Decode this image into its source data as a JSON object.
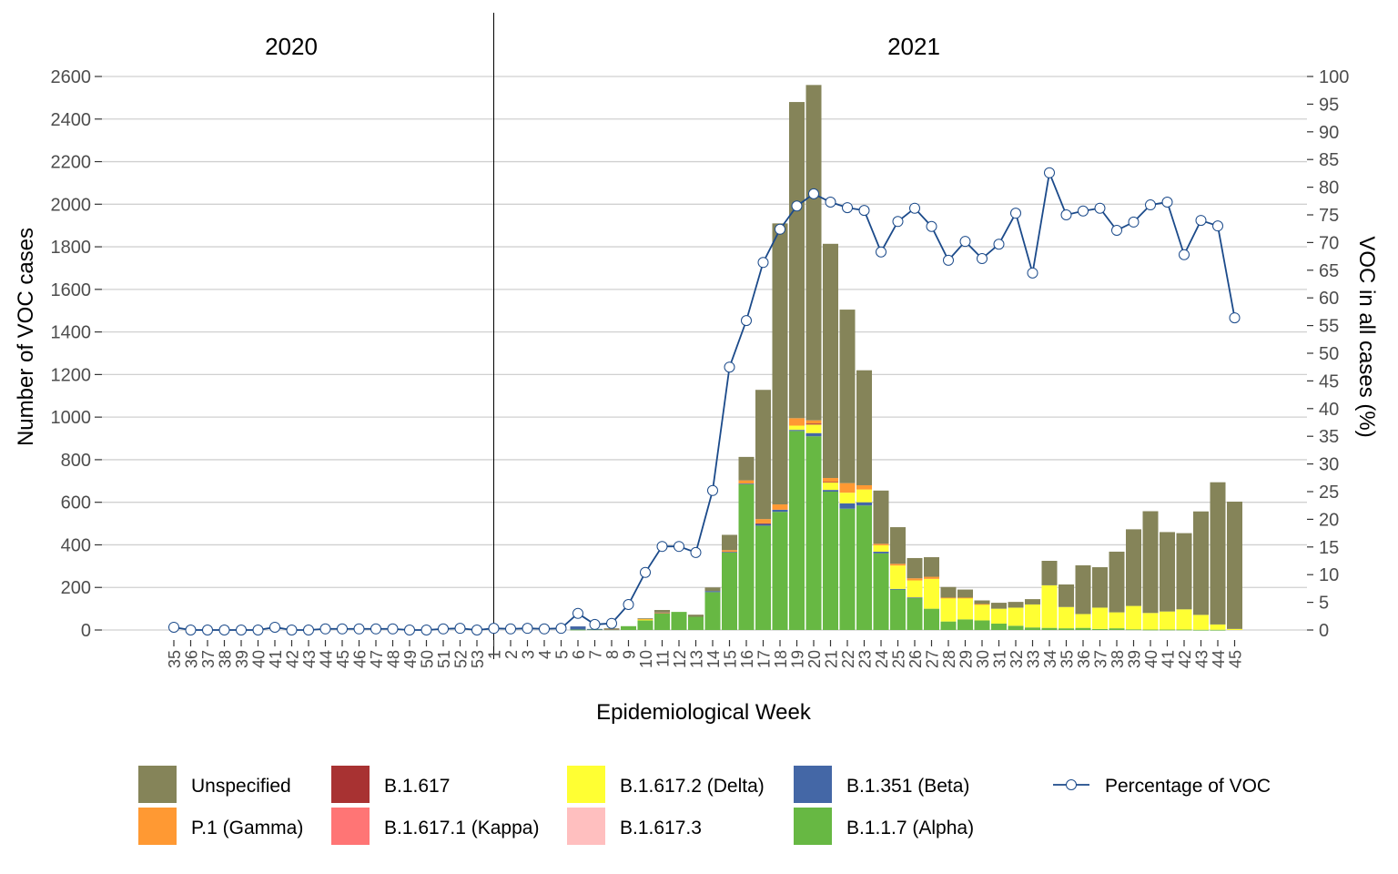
{
  "chart_data": {
    "type": "bar",
    "stacked": true,
    "facets": [
      "2020",
      "2021"
    ],
    "xlabel": "Epidemiological Week",
    "ylabel": "Number of VOC cases",
    "y2label": "VOC in all cases (%)",
    "ylim": [
      0,
      2600
    ],
    "yticks": [
      0,
      200,
      400,
      600,
      800,
      1000,
      1200,
      1400,
      1600,
      1800,
      2000,
      2200,
      2400,
      2600
    ],
    "y2lim": [
      0,
      100
    ],
    "y2ticks": [
      0,
      5,
      10,
      15,
      20,
      25,
      30,
      35,
      40,
      45,
      50,
      55,
      60,
      65,
      70,
      75,
      80,
      85,
      90,
      95,
      100
    ],
    "grid": true,
    "legend_position": "bottom",
    "weeks": [
      {
        "year": "2020",
        "week": "35"
      },
      {
        "year": "2020",
        "week": "36"
      },
      {
        "year": "2020",
        "week": "37"
      },
      {
        "year": "2020",
        "week": "38"
      },
      {
        "year": "2020",
        "week": "39"
      },
      {
        "year": "2020",
        "week": "40"
      },
      {
        "year": "2020",
        "week": "41"
      },
      {
        "year": "2020",
        "week": "42"
      },
      {
        "year": "2020",
        "week": "43"
      },
      {
        "year": "2020",
        "week": "44"
      },
      {
        "year": "2020",
        "week": "45"
      },
      {
        "year": "2020",
        "week": "46"
      },
      {
        "year": "2020",
        "week": "47"
      },
      {
        "year": "2020",
        "week": "48"
      },
      {
        "year": "2020",
        "week": "49"
      },
      {
        "year": "2020",
        "week": "50"
      },
      {
        "year": "2020",
        "week": "51"
      },
      {
        "year": "2020",
        "week": "52"
      },
      {
        "year": "2020",
        "week": "53"
      },
      {
        "year": "2021",
        "week": "1"
      },
      {
        "year": "2021",
        "week": "2"
      },
      {
        "year": "2021",
        "week": "3"
      },
      {
        "year": "2021",
        "week": "4"
      },
      {
        "year": "2021",
        "week": "5"
      },
      {
        "year": "2021",
        "week": "6"
      },
      {
        "year": "2021",
        "week": "7"
      },
      {
        "year": "2021",
        "week": "8"
      },
      {
        "year": "2021",
        "week": "9"
      },
      {
        "year": "2021",
        "week": "10"
      },
      {
        "year": "2021",
        "week": "11"
      },
      {
        "year": "2021",
        "week": "12"
      },
      {
        "year": "2021",
        "week": "13"
      },
      {
        "year": "2021",
        "week": "14"
      },
      {
        "year": "2021",
        "week": "15"
      },
      {
        "year": "2021",
        "week": "16"
      },
      {
        "year": "2021",
        "week": "17"
      },
      {
        "year": "2021",
        "week": "18"
      },
      {
        "year": "2021",
        "week": "19"
      },
      {
        "year": "2021",
        "week": "20"
      },
      {
        "year": "2021",
        "week": "21"
      },
      {
        "year": "2021",
        "week": "22"
      },
      {
        "year": "2021",
        "week": "23"
      },
      {
        "year": "2021",
        "week": "24"
      },
      {
        "year": "2021",
        "week": "25"
      },
      {
        "year": "2021",
        "week": "26"
      },
      {
        "year": "2021",
        "week": "27"
      },
      {
        "year": "2021",
        "week": "28"
      },
      {
        "year": "2021",
        "week": "29"
      },
      {
        "year": "2021",
        "week": "30"
      },
      {
        "year": "2021",
        "week": "31"
      },
      {
        "year": "2021",
        "week": "32"
      },
      {
        "year": "2021",
        "week": "33"
      },
      {
        "year": "2021",
        "week": "34"
      },
      {
        "year": "2021",
        "week": "35"
      },
      {
        "year": "2021",
        "week": "36"
      },
      {
        "year": "2021",
        "week": "37"
      },
      {
        "year": "2021",
        "week": "38"
      },
      {
        "year": "2021",
        "week": "39"
      },
      {
        "year": "2021",
        "week": "40"
      },
      {
        "year": "2021",
        "week": "41"
      },
      {
        "year": "2021",
        "week": "42"
      },
      {
        "year": "2021",
        "week": "43"
      },
      {
        "year": "2021",
        "week": "44"
      },
      {
        "year": "2021",
        "week": "45"
      }
    ],
    "series": [
      {
        "name": "B.1.1.7 (Alpha)",
        "color": "#67b843",
        "values": [
          0,
          0,
          0,
          0,
          0,
          0,
          0,
          0,
          0,
          0,
          0,
          0,
          0,
          0,
          0,
          0,
          0,
          0,
          0,
          0,
          0,
          0,
          0,
          0,
          2,
          3,
          3,
          18,
          45,
          80,
          85,
          62,
          178,
          365,
          685,
          490,
          555,
          935,
          910,
          650,
          570,
          585,
          360,
          190,
          150,
          100,
          40,
          50,
          45,
          30,
          20,
          12,
          10,
          8,
          10,
          5,
          8,
          3,
          2,
          2,
          2,
          1,
          1,
          0
        ]
      },
      {
        "name": "B.1.351 (Beta)",
        "color": "#4467a6",
        "values": [
          0,
          0,
          0,
          0,
          0,
          0,
          0,
          0,
          0,
          0,
          0,
          0,
          0,
          0,
          0,
          0,
          0,
          0,
          0,
          0,
          0,
          0,
          0,
          0,
          15,
          2,
          1,
          0,
          0,
          0,
          0,
          0,
          5,
          2,
          3,
          8,
          10,
          5,
          15,
          8,
          25,
          15,
          8,
          3,
          3,
          0,
          0,
          0,
          0,
          0,
          0,
          0,
          0,
          0,
          0,
          0,
          0,
          0,
          0,
          0,
          0,
          0,
          0,
          0
        ]
      },
      {
        "name": "B.1.617.2 (Delta)",
        "color": "#ffff33",
        "values": [
          0,
          0,
          0,
          0,
          0,
          0,
          0,
          0,
          0,
          0,
          0,
          0,
          0,
          0,
          0,
          0,
          0,
          0,
          0,
          0,
          0,
          0,
          0,
          0,
          0,
          0,
          0,
          0,
          5,
          0,
          0,
          0,
          0,
          0,
          0,
          0,
          0,
          20,
          40,
          35,
          50,
          60,
          30,
          110,
          80,
          140,
          110,
          100,
          75,
          70,
          85,
          108,
          200,
          100,
          65,
          100,
          75,
          110,
          78,
          85,
          95,
          70,
          25,
          5
        ]
      },
      {
        "name": "B.1.617",
        "color": "#a83232",
        "values": [
          0,
          0,
          0,
          0,
          0,
          0,
          0,
          0,
          0,
          0,
          0,
          0,
          0,
          0,
          0,
          0,
          0,
          0,
          0,
          0,
          0,
          0,
          0,
          0,
          0,
          0,
          0,
          0,
          0,
          0,
          0,
          0,
          0,
          0,
          0,
          3,
          0,
          0,
          5,
          3,
          0,
          0,
          0,
          0,
          0,
          0,
          0,
          0,
          0,
          0,
          0,
          0,
          0,
          0,
          0,
          0,
          0,
          0,
          0,
          0,
          0,
          0,
          0,
          0
        ]
      },
      {
        "name": "B.1.617.1 (Kappa)",
        "color": "#ff7575",
        "values": [
          0,
          0,
          0,
          0,
          0,
          0,
          0,
          0,
          0,
          0,
          0,
          0,
          0,
          0,
          0,
          0,
          0,
          0,
          0,
          0,
          0,
          0,
          0,
          0,
          0,
          0,
          0,
          0,
          0,
          2,
          0,
          0,
          0,
          0,
          0,
          0,
          0,
          0,
          0,
          0,
          0,
          0,
          0,
          0,
          0,
          0,
          0,
          0,
          0,
          0,
          0,
          0,
          0,
          0,
          0,
          0,
          0,
          0,
          0,
          0,
          0,
          0,
          0,
          0
        ]
      },
      {
        "name": "B.1.617.3",
        "color": "#ffbfbf",
        "values": [
          0,
          0,
          0,
          0,
          0,
          0,
          0,
          0,
          0,
          0,
          0,
          0,
          0,
          0,
          0,
          0,
          0,
          0,
          0,
          0,
          0,
          0,
          0,
          0,
          0,
          0,
          0,
          0,
          0,
          0,
          0,
          0,
          0,
          0,
          0,
          0,
          0,
          0,
          0,
          0,
          0,
          0,
          0,
          0,
          0,
          0,
          0,
          0,
          0,
          0,
          0,
          0,
          0,
          0,
          0,
          0,
          0,
          0,
          0,
          0,
          0,
          0,
          0,
          0
        ]
      },
      {
        "name": "P.1 (Gamma)",
        "color": "#ff9933",
        "values": [
          0,
          0,
          0,
          0,
          0,
          0,
          0,
          0,
          0,
          0,
          0,
          0,
          0,
          0,
          0,
          0,
          0,
          0,
          0,
          0,
          0,
          0,
          0,
          0,
          0,
          0,
          2,
          0,
          2,
          0,
          0,
          0,
          0,
          8,
          15,
          20,
          25,
          35,
          15,
          18,
          45,
          20,
          7,
          8,
          10,
          10,
          2,
          2,
          2,
          0,
          0,
          0,
          0,
          0,
          0,
          0,
          0,
          0,
          0,
          0,
          0,
          0,
          0,
          0
        ]
      },
      {
        "name": "Unspecified",
        "color": "#858459",
        "values": [
          0,
          0,
          0,
          0,
          0,
          0,
          0,
          0,
          0,
          0,
          0,
          0,
          0,
          0,
          0,
          0,
          0,
          0,
          0,
          0,
          0,
          0,
          0,
          0,
          0,
          0,
          2,
          0,
          3,
          12,
          0,
          10,
          17,
          72,
          110,
          607,
          1320,
          1485,
          1575,
          1100,
          815,
          540,
          250,
          172,
          95,
          92,
          50,
          38,
          17,
          28,
          27,
          25,
          115,
          106,
          229,
          190,
          285,
          360,
          478,
          373,
          358,
          486,
          668,
          598
        ]
      }
    ],
    "line_series": {
      "name": "Percentage of VOC",
      "color": "#1b4a8a",
      "axis": "right",
      "values": [
        0.5,
        0,
        0,
        0,
        0,
        0,
        0.5,
        0,
        0,
        0.2,
        0.2,
        0.2,
        0.2,
        0.2,
        0,
        0,
        0.2,
        0.3,
        0,
        0.3,
        0.2,
        0.3,
        0.2,
        0.3,
        3,
        1,
        1.2,
        4.6,
        10.4,
        15.1,
        15.1,
        14,
        25.2,
        47.5,
        55.9,
        66.4,
        72.4,
        76.6,
        78.8,
        77.3,
        76.3,
        75.8,
        68.3,
        73.8,
        76.2,
        72.9,
        66.8,
        70.2,
        67.1,
        69.7,
        75.3,
        64.5,
        82.6,
        75,
        75.7,
        76.2,
        72.2,
        73.7,
        76.8,
        77.3,
        67.8,
        74,
        73,
        56.4
      ]
    },
    "legend": [
      {
        "label": "Unspecified",
        "color": "#858459",
        "kind": "fill"
      },
      {
        "label": "P.1 (Gamma)",
        "color": "#ff9933",
        "kind": "fill"
      },
      {
        "label": "B.1.617",
        "color": "#a83232",
        "kind": "fill"
      },
      {
        "label": "B.1.617.1 (Kappa)",
        "color": "#ff7575",
        "kind": "fill"
      },
      {
        "label": "B.1.617.2 (Delta)",
        "color": "#ffff33",
        "kind": "fill"
      },
      {
        "label": "B.1.617.3",
        "color": "#ffbfbf",
        "kind": "fill"
      },
      {
        "label": "B.1.351 (Beta)",
        "color": "#4467a6",
        "kind": "fill"
      },
      {
        "label": "B.1.1.7 (Alpha)",
        "color": "#67b843",
        "kind": "fill"
      },
      {
        "label": "Percentage of VOC",
        "color": "#1b4a8a",
        "kind": "line"
      }
    ]
  }
}
